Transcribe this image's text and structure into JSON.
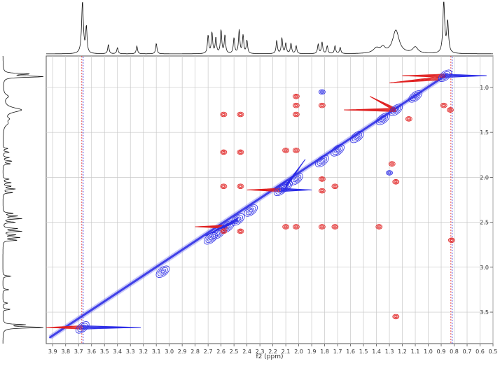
{
  "chart_data": {
    "type": "contour-2d-nmr",
    "xlabel": "f2 (ppm)",
    "x_ticks": [
      "3.9",
      "3.8",
      "3.7",
      "3.6",
      "3.5",
      "3.4",
      "3.3",
      "3.2",
      "3.1",
      "3.0",
      "2.9",
      "2.8",
      "2.7",
      "2.6",
      "2.5",
      "2.4",
      "2.3",
      "2.2",
      "2.1",
      "2.0",
      "1.9",
      "1.8",
      "1.7",
      "1.6",
      "1.5",
      "1.4",
      "1.3",
      "1.2",
      "1.1",
      "1.0",
      "0.9",
      "0.8",
      "0.7",
      "0.6",
      "0.5"
    ],
    "y_ticks": [
      "1.0",
      "1.5",
      "2.0",
      "2.5",
      "3.0",
      "3.5"
    ],
    "xlim": [
      3.95,
      0.5
    ],
    "ylim": [
      0.65,
      3.85
    ],
    "grid": true,
    "colors": {
      "positive": "#2a2ae6",
      "negative": "#e02020",
      "projection": "#111111",
      "grid": "#c8c8c8"
    },
    "diagonal_peaks": [
      {
        "x": 3.67,
        "y": 3.67
      },
      {
        "x": 3.05,
        "y": 3.05
      },
      {
        "x": 2.68,
        "y": 2.68
      },
      {
        "x": 2.62,
        "y": 2.62
      },
      {
        "x": 2.55,
        "y": 2.55
      },
      {
        "x": 2.47,
        "y": 2.47
      },
      {
        "x": 2.37,
        "y": 2.37
      },
      {
        "x": 2.14,
        "y": 2.14
      },
      {
        "x": 2.1,
        "y": 2.1
      },
      {
        "x": 2.02,
        "y": 2.02
      },
      {
        "x": 1.82,
        "y": 1.82
      },
      {
        "x": 1.7,
        "y": 1.7
      },
      {
        "x": 1.55,
        "y": 1.55
      },
      {
        "x": 1.35,
        "y": 1.35
      },
      {
        "x": 1.25,
        "y": 1.25
      },
      {
        "x": 1.1,
        "y": 1.1
      },
      {
        "x": 0.87,
        "y": 0.87
      }
    ],
    "cross_peaks": [
      {
        "x": 2.58,
        "y": 1.3,
        "sign": "neg"
      },
      {
        "x": 2.45,
        "y": 1.3,
        "sign": "neg"
      },
      {
        "x": 2.58,
        "y": 1.72,
        "sign": "neg"
      },
      {
        "x": 2.45,
        "y": 1.72,
        "sign": "neg"
      },
      {
        "x": 2.58,
        "y": 2.1,
        "sign": "neg"
      },
      {
        "x": 2.45,
        "y": 2.1,
        "sign": "neg"
      },
      {
        "x": 2.58,
        "y": 2.6,
        "sign": "neg"
      },
      {
        "x": 2.45,
        "y": 2.6,
        "sign": "neg"
      },
      {
        "x": 2.1,
        "y": 1.7,
        "sign": "neg"
      },
      {
        "x": 2.02,
        "y": 1.7,
        "sign": "neg"
      },
      {
        "x": 2.02,
        "y": 1.3,
        "sign": "neg"
      },
      {
        "x": 2.02,
        "y": 1.1,
        "sign": "neg"
      },
      {
        "x": 2.02,
        "y": 1.2,
        "sign": "neg"
      },
      {
        "x": 2.1,
        "y": 2.55,
        "sign": "neg"
      },
      {
        "x": 2.02,
        "y": 2.55,
        "sign": "neg"
      },
      {
        "x": 1.82,
        "y": 1.2,
        "sign": "neg"
      },
      {
        "x": 1.82,
        "y": 2.02,
        "sign": "neg"
      },
      {
        "x": 1.82,
        "y": 2.15,
        "sign": "neg"
      },
      {
        "x": 1.72,
        "y": 2.1,
        "sign": "neg"
      },
      {
        "x": 1.72,
        "y": 2.55,
        "sign": "neg"
      },
      {
        "x": 1.82,
        "y": 2.55,
        "sign": "neg"
      },
      {
        "x": 1.82,
        "y": 1.05,
        "sign": "pos"
      },
      {
        "x": 1.38,
        "y": 2.55,
        "sign": "neg"
      },
      {
        "x": 1.3,
        "y": 1.95,
        "sign": "pos"
      },
      {
        "x": 1.28,
        "y": 1.85,
        "sign": "neg"
      },
      {
        "x": 1.25,
        "y": 2.05,
        "sign": "neg"
      },
      {
        "x": 1.25,
        "y": 3.55,
        "sign": "neg"
      },
      {
        "x": 1.15,
        "y": 1.35,
        "sign": "neg"
      },
      {
        "x": 0.82,
        "y": 2.7,
        "sign": "neg"
      },
      {
        "x": 0.88,
        "y": 1.2,
        "sign": "neg"
      },
      {
        "x": 0.83,
        "y": 1.25,
        "sign": "neg"
      }
    ],
    "ridges": [
      {
        "x1": 3.67,
        "y1": 3.67,
        "x2": 3.22,
        "y2": 3.67,
        "sign": "pos"
      },
      {
        "x1": 3.67,
        "y1": 3.67,
        "x2": 3.95,
        "y2": 3.67,
        "sign": "neg"
      },
      {
        "x1": 0.87,
        "y1": 0.87,
        "x2": 0.55,
        "y2": 0.87,
        "sign": "pos"
      },
      {
        "x1": 0.87,
        "y1": 0.87,
        "x2": 1.2,
        "y2": 0.87,
        "sign": "neg"
      },
      {
        "x1": 2.14,
        "y1": 2.14,
        "x2": 2.4,
        "y2": 2.14,
        "sign": "neg"
      },
      {
        "x1": 2.14,
        "y1": 2.14,
        "x2": 1.9,
        "y2": 2.14,
        "sign": "pos"
      },
      {
        "x1": 2.55,
        "y1": 2.55,
        "x2": 2.8,
        "y2": 2.55,
        "sign": "neg"
      },
      {
        "x1": 2.47,
        "y1": 2.47,
        "x2": 2.72,
        "y2": 2.65,
        "sign": "pos"
      },
      {
        "x1": 1.25,
        "y1": 1.25,
        "x2": 1.65,
        "y2": 1.25,
        "sign": "neg"
      },
      {
        "x1": 1.25,
        "y1": 1.25,
        "x2": 1.45,
        "y2": 1.1,
        "sign": "neg"
      },
      {
        "x1": 0.92,
        "y1": 0.9,
        "x2": 1.3,
        "y2": 0.95,
        "sign": "neg"
      },
      {
        "x1": 2.1,
        "y1": 2.1,
        "x2": 1.95,
        "y2": 1.8,
        "sign": "pos"
      }
    ],
    "t1_noise_x": [
      3.67,
      0.82
    ],
    "h1_projection_peaks": [
      {
        "ppm": 3.67,
        "h": 1.0,
        "w": 0.008
      },
      {
        "ppm": 3.64,
        "h": 0.5,
        "w": 0.006
      },
      {
        "ppm": 3.47,
        "h": 0.18,
        "w": 0.006
      },
      {
        "ppm": 3.4,
        "h": 0.12,
        "w": 0.006
      },
      {
        "ppm": 3.25,
        "h": 0.15,
        "w": 0.006
      },
      {
        "ppm": 3.1,
        "h": 0.2,
        "w": 0.006
      },
      {
        "ppm": 2.7,
        "h": 0.35,
        "w": 0.006
      },
      {
        "ppm": 2.67,
        "h": 0.4,
        "w": 0.006
      },
      {
        "ppm": 2.64,
        "h": 0.3,
        "w": 0.006
      },
      {
        "ppm": 2.6,
        "h": 0.45,
        "w": 0.006
      },
      {
        "ppm": 2.57,
        "h": 0.35,
        "w": 0.006
      },
      {
        "ppm": 2.5,
        "h": 0.3,
        "w": 0.006
      },
      {
        "ppm": 2.46,
        "h": 0.45,
        "w": 0.006
      },
      {
        "ppm": 2.43,
        "h": 0.35,
        "w": 0.006
      },
      {
        "ppm": 2.4,
        "h": 0.25,
        "w": 0.006
      },
      {
        "ppm": 2.17,
        "h": 0.25,
        "w": 0.006
      },
      {
        "ppm": 2.13,
        "h": 0.3,
        "w": 0.006
      },
      {
        "ppm": 2.1,
        "h": 0.2,
        "w": 0.006
      },
      {
        "ppm": 2.06,
        "h": 0.2,
        "w": 0.006
      },
      {
        "ppm": 2.02,
        "h": 0.15,
        "w": 0.006
      },
      {
        "ppm": 1.85,
        "h": 0.18,
        "w": 0.006
      },
      {
        "ppm": 1.82,
        "h": 0.22,
        "w": 0.006
      },
      {
        "ppm": 1.78,
        "h": 0.15,
        "w": 0.006
      },
      {
        "ppm": 1.72,
        "h": 0.15,
        "w": 0.006
      },
      {
        "ppm": 1.68,
        "h": 0.12,
        "w": 0.006
      },
      {
        "ppm": 1.4,
        "h": 0.1,
        "w": 0.03
      },
      {
        "ppm": 1.35,
        "h": 0.1,
        "w": 0.02
      },
      {
        "ppm": 1.25,
        "h": 0.45,
        "w": 0.03
      },
      {
        "ppm": 1.1,
        "h": 0.12,
        "w": 0.025
      },
      {
        "ppm": 0.88,
        "h": 1.0,
        "w": 0.008
      },
      {
        "ppm": 0.85,
        "h": 0.6,
        "w": 0.008
      }
    ]
  }
}
